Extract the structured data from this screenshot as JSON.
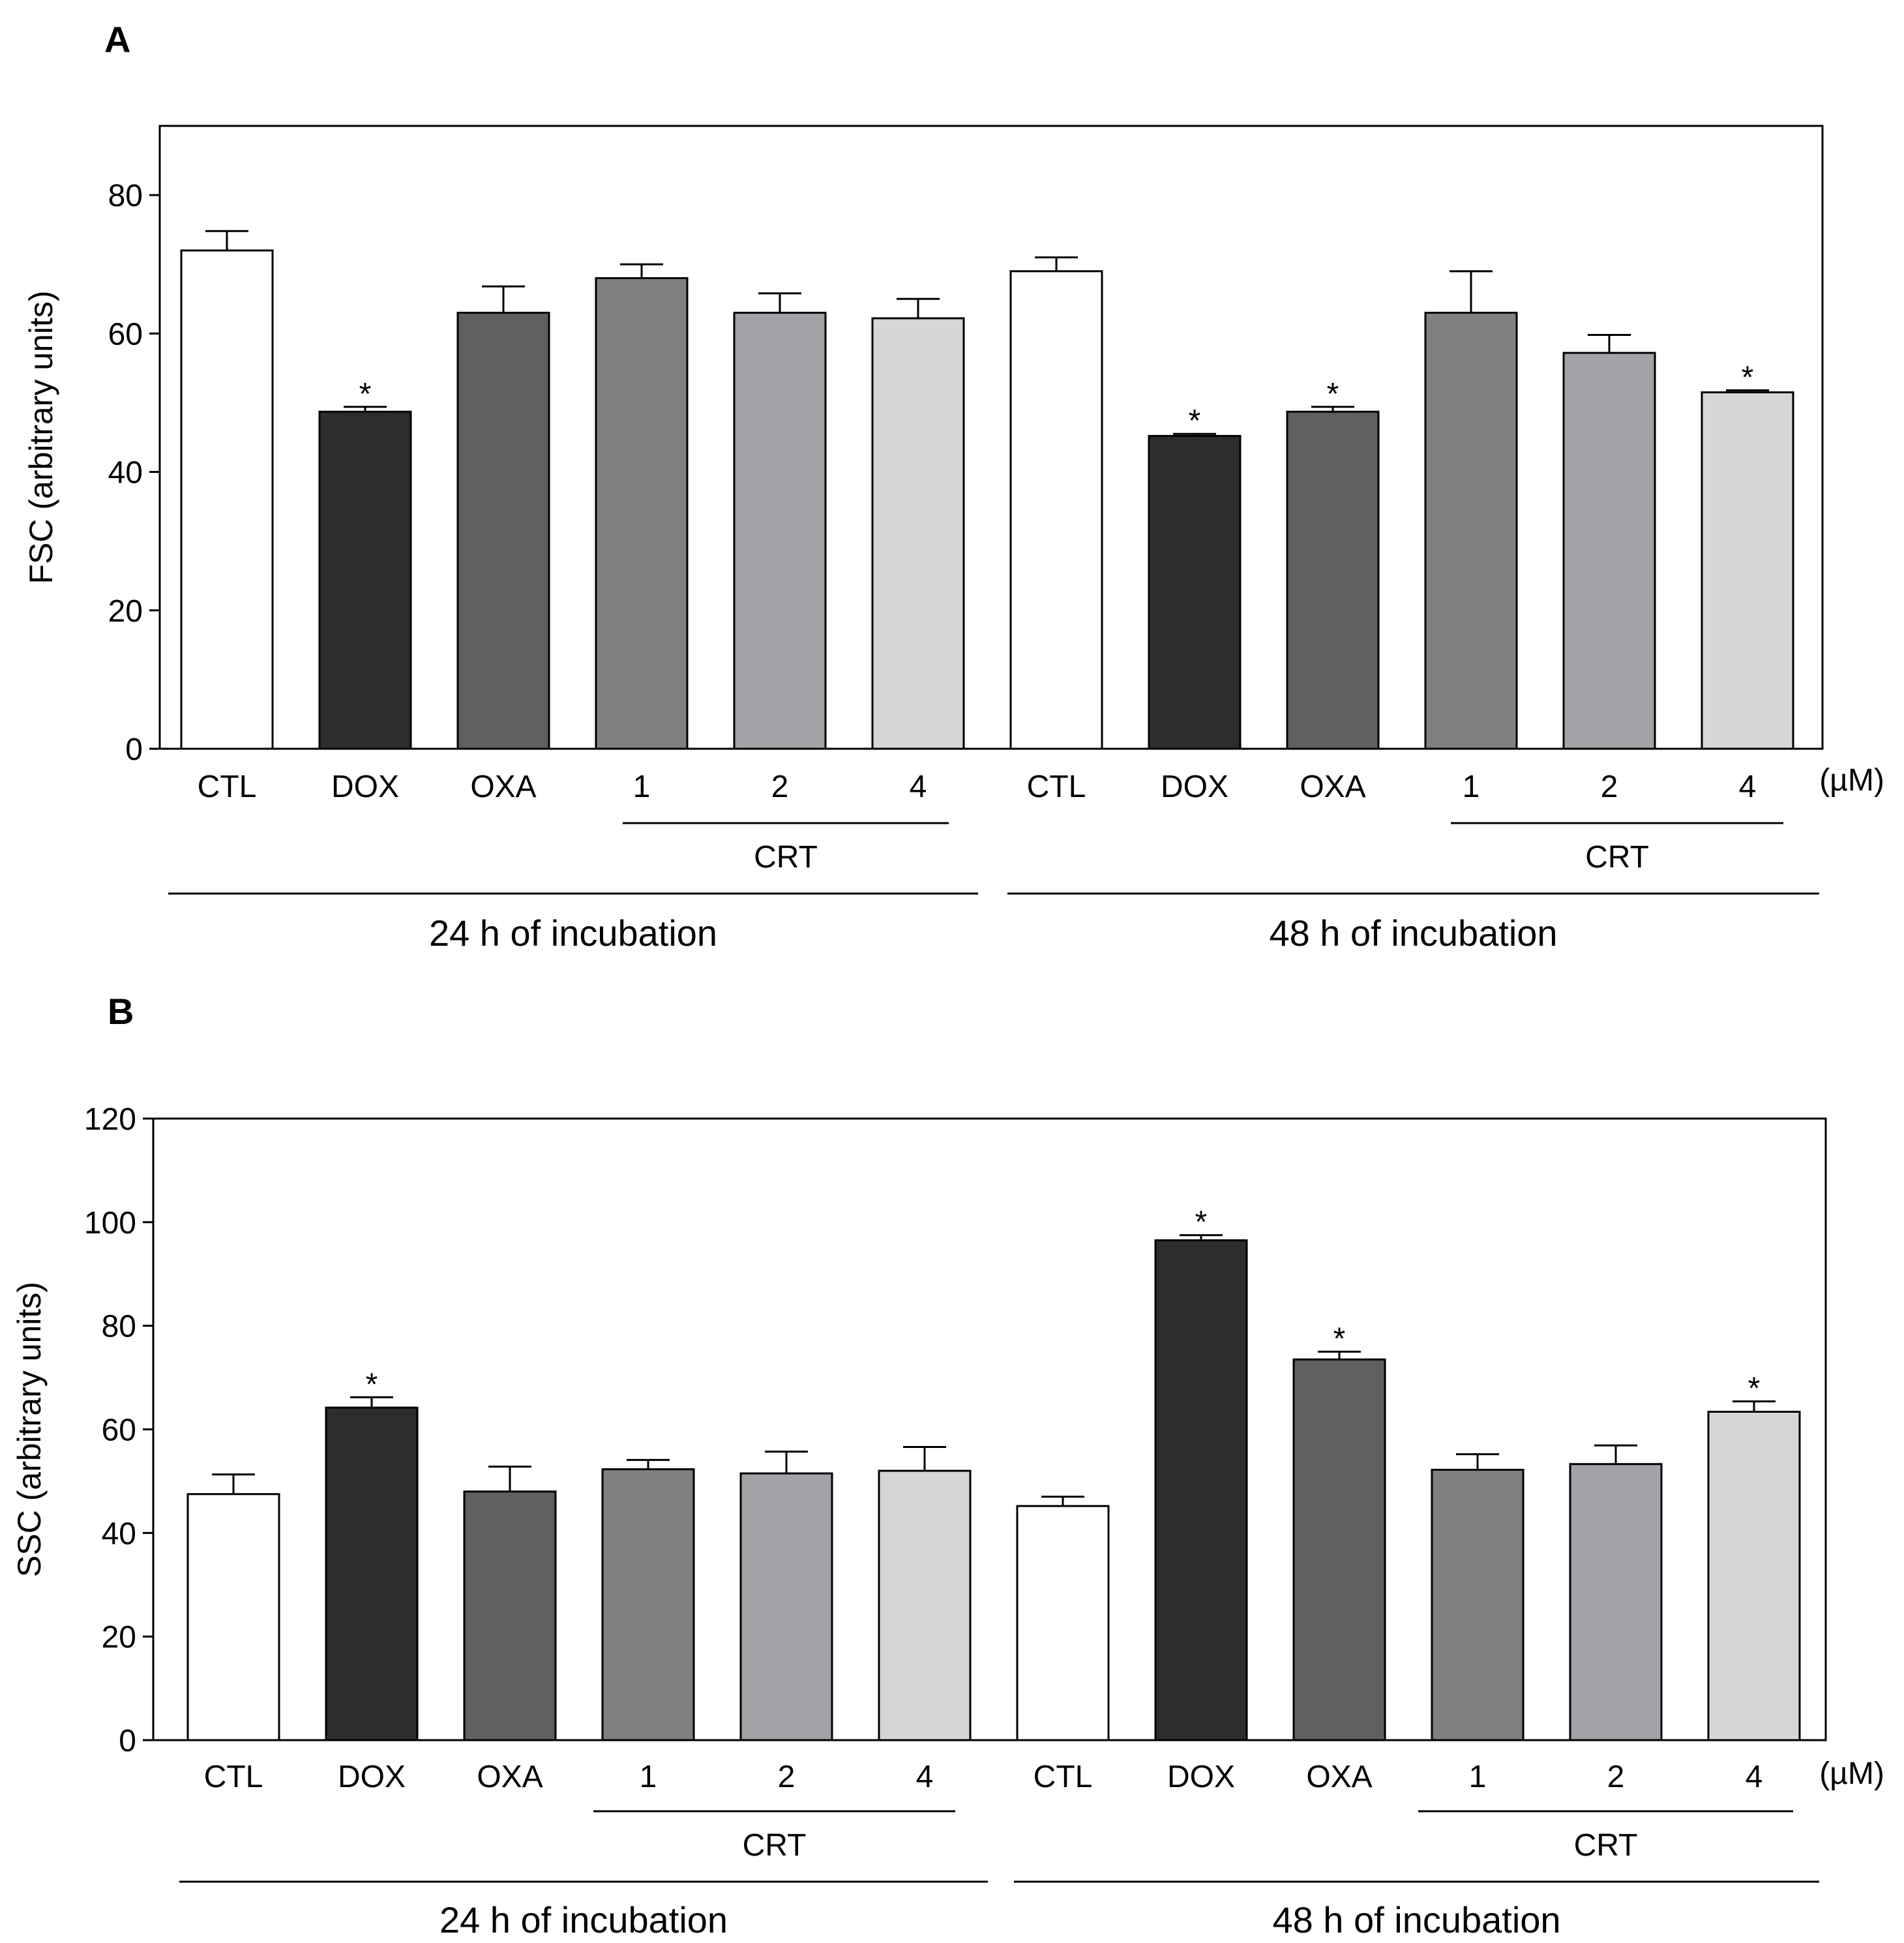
{
  "chart_data": [
    {
      "panel": "A",
      "type": "bar",
      "ylabel": "FSC (arbitrary units)",
      "ylim": [
        0,
        90
      ],
      "yticks": [
        0,
        20,
        40,
        60,
        80
      ],
      "unit_label": "(µM)",
      "categories": [
        "CTL",
        "DOX",
        "OXA",
        "1",
        "2",
        "4",
        "CTL",
        "DOX",
        "OXA",
        "1",
        "2",
        "4"
      ],
      "values": [
        72,
        48.7,
        63,
        68,
        63,
        62.2,
        69,
        45.2,
        48.7,
        63,
        57.2,
        51.5
      ],
      "errors": [
        2.8,
        0.7,
        3.8,
        2.0,
        2.8,
        2.8,
        2.0,
        0.3,
        0.7,
        6.0,
        2.6,
        0.3
      ],
      "significant": [
        false,
        true,
        false,
        false,
        false,
        false,
        false,
        true,
        true,
        false,
        false,
        true
      ],
      "colors": [
        "#ffffff",
        "#2d2d2d",
        "#5f5f5f",
        "#808080",
        "#a2a3a6",
        "#d6d6d6",
        "#ffffff",
        "#2d2d2d",
        "#5f5f5f",
        "#808080",
        "#a2a3a6",
        "#d6d6d6"
      ],
      "sub_groups": [
        {
          "label": "CRT",
          "from": 3,
          "to": 5
        },
        {
          "label": "CRT",
          "from": 9,
          "to": 11
        }
      ],
      "groups": [
        {
          "label": "24 h of incubation",
          "from": 0,
          "to": 5
        },
        {
          "label": "48 h of incubation",
          "from": 6,
          "to": 11
        }
      ]
    },
    {
      "panel": "B",
      "type": "bar",
      "ylabel": "SSC (arbitrary units)",
      "ylim": [
        0,
        120
      ],
      "yticks": [
        0,
        20,
        40,
        60,
        80,
        100,
        120
      ],
      "unit_label": "(µM)",
      "categories": [
        "CTL",
        "DOX",
        "OXA",
        "1",
        "2",
        "4",
        "CTL",
        "DOX",
        "OXA",
        "1",
        "2",
        "4"
      ],
      "values": [
        47.5,
        64.2,
        48,
        52.3,
        51.5,
        52,
        45.2,
        96.5,
        73.5,
        52.2,
        53.3,
        63.4
      ],
      "errors": [
        3.8,
        2.0,
        4.8,
        1.8,
        4.2,
        4.6,
        1.8,
        1.0,
        1.5,
        3.0,
        3.6,
        2.0
      ],
      "significant": [
        false,
        true,
        false,
        false,
        false,
        false,
        false,
        true,
        true,
        false,
        false,
        true
      ],
      "colors": [
        "#ffffff",
        "#2d2d2d",
        "#5f5f5f",
        "#808080",
        "#a2a3a6",
        "#d6d6d6",
        "#ffffff",
        "#2d2d2d",
        "#5f5f5f",
        "#808080",
        "#a2a3a6",
        "#d6d6d6"
      ],
      "sub_groups": [
        {
          "label": "CRT",
          "from": 3,
          "to": 5
        },
        {
          "label": "CRT",
          "from": 9,
          "to": 11
        }
      ],
      "groups": [
        {
          "label": "24 h of incubation",
          "from": 0,
          "to": 5
        },
        {
          "label": "48 h of incubation",
          "from": 6,
          "to": 11
        }
      ]
    }
  ]
}
